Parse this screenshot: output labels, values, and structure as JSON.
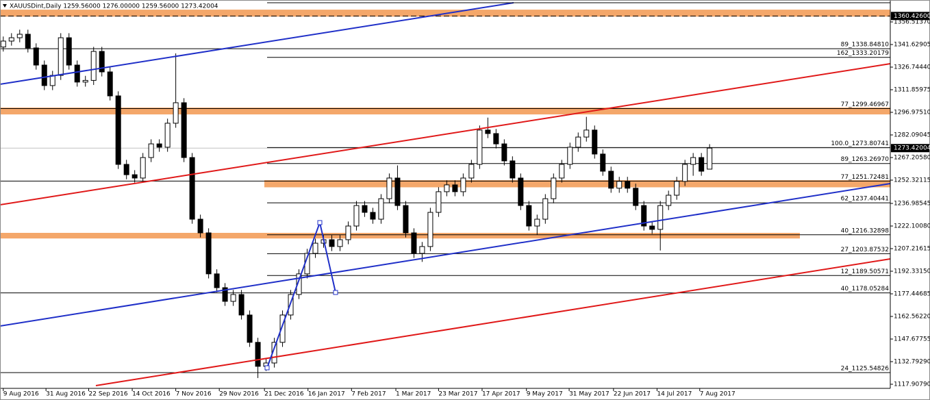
{
  "chart_data": {
    "type": "candlestick",
    "title": "XAUUSDint,Daily  1259.56000 1276.00000 1259.56000 1273.42004",
    "open": [
      1340.0,
      1343.9,
      1346.1,
      1348.4,
      1339.4,
      1328.1,
      1314.6,
      1321.3,
      1346.1,
      1328.1,
      1316.9,
      1318.0,
      1337.1,
      1323.6,
      1307.8,
      1262.7,
      1255.9,
      1253.7,
      1267.2,
      1276.2,
      1274.0,
      1289.8,
      1303.3,
      1267.2,
      1226.6,
      1217.6,
      1190.6,
      1181.5,
      1172.5,
      1177.0,
      1163.5,
      1145.5,
      1129.7,
      1131.9,
      1145.5,
      1163.5,
      1177.0,
      1190.6,
      1204.1,
      1210.8,
      1213.1,
      1208.6,
      1213.1,
      1222.1,
      1235.6,
      1231.1,
      1226.6,
      1240.1,
      1253.7,
      1235.6,
      1217.6,
      1204.1,
      1208.6,
      1231.1,
      1244.7,
      1249.2,
      1244.7,
      1253.7,
      1262.7,
      1285.3,
      1283.0,
      1276.2,
      1265.0,
      1253.7,
      1235.6,
      1222.1,
      1226.6,
      1240.1,
      1253.7,
      1262.7,
      1274.0,
      1280.7,
      1285.3,
      1269.5,
      1258.2,
      1247.0,
      1251.5,
      1247.0,
      1235.6,
      1222.1,
      1219.9,
      1235.6,
      1242.4,
      1251.5,
      1262.7,
      1267.2,
      1259.56
    ],
    "high": [
      1346.9,
      1349.1,
      1351.4,
      1351.4,
      1342.4,
      1331.1,
      1324.3,
      1349.1,
      1349.1,
      1331.1,
      1321.0,
      1340.1,
      1340.1,
      1326.6,
      1310.8,
      1265.7,
      1258.9,
      1270.2,
      1279.2,
      1279.2,
      1292.8,
      1335.8,
      1306.3,
      1270.2,
      1229.6,
      1220.6,
      1193.6,
      1184.5,
      1180.0,
      1180.0,
      1166.5,
      1148.5,
      1134.9,
      1148.5,
      1166.5,
      1180.0,
      1193.6,
      1207.1,
      1213.8,
      1216.1,
      1216.1,
      1216.1,
      1225.1,
      1238.6,
      1238.6,
      1234.1,
      1243.1,
      1256.7,
      1262.0,
      1238.6,
      1220.6,
      1211.6,
      1234.1,
      1247.7,
      1252.2,
      1252.2,
      1256.7,
      1265.7,
      1288.3,
      1293.5,
      1286.0,
      1279.2,
      1268.0,
      1256.7,
      1238.6,
      1229.6,
      1243.1,
      1256.7,
      1265.7,
      1277.0,
      1283.7,
      1294.0,
      1288.3,
      1272.5,
      1261.2,
      1254.5,
      1254.5,
      1250.0,
      1238.6,
      1225.1,
      1238.6,
      1245.4,
      1254.5,
      1265.7,
      1270.2,
      1270.2,
      1276.0
    ],
    "low": [
      1337.0,
      1340.9,
      1343.1,
      1336.4,
      1325.1,
      1311.6,
      1311.6,
      1318.3,
      1325.1,
      1313.9,
      1313.9,
      1315.0,
      1320.6,
      1304.8,
      1259.7,
      1252.9,
      1250.7,
      1250.7,
      1264.2,
      1271.0,
      1271.0,
      1286.8,
      1264.2,
      1223.6,
      1214.6,
      1187.6,
      1178.5,
      1169.5,
      1169.5,
      1160.5,
      1142.5,
      1122.0,
      1126.7,
      1128.9,
      1142.5,
      1160.5,
      1174.0,
      1187.6,
      1201.1,
      1207.8,
      1205.6,
      1205.6,
      1210.1,
      1219.1,
      1228.1,
      1223.6,
      1223.6,
      1237.1,
      1232.6,
      1214.6,
      1201.1,
      1198.5,
      1205.6,
      1228.1,
      1241.7,
      1241.7,
      1241.7,
      1250.7,
      1259.7,
      1280.0,
      1273.2,
      1262.0,
      1250.7,
      1232.6,
      1219.1,
      1216.5,
      1223.6,
      1237.1,
      1250.7,
      1259.7,
      1271.0,
      1277.7,
      1266.5,
      1255.2,
      1244.0,
      1244.0,
      1244.0,
      1232.6,
      1219.1,
      1216.9,
      1206.0,
      1232.6,
      1239.4,
      1248.5,
      1255.2,
      1255.2,
      1259.56
    ],
    "close": [
      1343.9,
      1346.1,
      1348.4,
      1339.4,
      1328.1,
      1314.6,
      1321.3,
      1346.1,
      1328.1,
      1316.9,
      1318.0,
      1337.1,
      1323.6,
      1307.8,
      1262.7,
      1255.9,
      1253.7,
      1267.2,
      1276.2,
      1274.0,
      1289.8,
      1303.3,
      1267.2,
      1226.6,
      1217.6,
      1190.6,
      1181.5,
      1172.5,
      1177.0,
      1163.5,
      1145.5,
      1129.7,
      1131.9,
      1145.5,
      1163.5,
      1177.0,
      1190.6,
      1204.1,
      1210.8,
      1213.1,
      1208.6,
      1213.1,
      1222.1,
      1235.6,
      1231.1,
      1226.6,
      1240.1,
      1253.7,
      1235.6,
      1217.6,
      1204.1,
      1208.6,
      1231.1,
      1244.7,
      1249.2,
      1244.7,
      1253.7,
      1262.7,
      1285.3,
      1283.0,
      1276.2,
      1265.0,
      1253.7,
      1235.6,
      1222.1,
      1226.6,
      1240.1,
      1253.7,
      1262.7,
      1274.0,
      1280.7,
      1285.3,
      1269.5,
      1258.2,
      1247.0,
      1251.5,
      1247.0,
      1235.6,
      1222.1,
      1219.9,
      1235.6,
      1242.4,
      1251.5,
      1262.7,
      1267.2,
      1258.2,
      1273.42004
    ],
    "xlim": [
      -0.4,
      108
    ],
    "xticks": [
      {
        "value": 0,
        "label": "9 Aug 2016"
      },
      {
        "value": 5.2,
        "label": "31 Aug 2016"
      },
      {
        "value": 10.4,
        "label": "22 Sep 2016"
      },
      {
        "value": 15.7,
        "label": "14 Oct 2016"
      },
      {
        "value": 21.0,
        "label": "7 Nov 2016"
      },
      {
        "value": 26.3,
        "label": "29 Nov 2016"
      },
      {
        "value": 31.8,
        "label": "21 Dec 2016"
      },
      {
        "value": 37.1,
        "label": "16 Jan 2017"
      },
      {
        "value": 42.4,
        "label": "7 Feb 2017"
      },
      {
        "value": 47.8,
        "label": "1 Mar 2017"
      },
      {
        "value": 53.0,
        "label": "23 Mar 2017"
      },
      {
        "value": 58.3,
        "label": "17 Apr 2017"
      },
      {
        "value": 63.7,
        "label": "9 May 2017"
      },
      {
        "value": 68.9,
        "label": "31 May 2017"
      },
      {
        "value": 74.3,
        "label": "22 Jun 2017"
      },
      {
        "value": 79.6,
        "label": "14 Jul 2017"
      },
      {
        "value": 84.8,
        "label": "7 Aug 2017"
      }
    ],
    "ylim": [
      1115.2,
      1370.95
    ],
    "yticks": [
      {
        "value": 1356.5137,
        "label": "1356.51370"
      },
      {
        "value": 1341.62905,
        "label": "1341.62905"
      },
      {
        "value": 1326.7444,
        "label": "1326.74440"
      },
      {
        "value": 1311.85975,
        "label": "1311.85975"
      },
      {
        "value": 1296.9751,
        "label": "1296.97510"
      },
      {
        "value": 1282.09045,
        "label": "1282.09045"
      },
      {
        "value": 1267.2058,
        "label": "1267.20580"
      },
      {
        "value": 1252.32115,
        "label": "1252.32115"
      },
      {
        "value": 1236.98545,
        "label": "1236.98545"
      },
      {
        "value": 1222.1008,
        "label": "1222.10080"
      },
      {
        "value": 1207.21615,
        "label": "1207.21615"
      },
      {
        "value": 1192.3315,
        "label": "1192.33150"
      },
      {
        "value": 1177.44685,
        "label": "1177.44685"
      },
      {
        "value": 1162.5622,
        "label": "1162.56220"
      },
      {
        "value": 1147.67755,
        "label": "1147.67755"
      },
      {
        "value": 1132.7929,
        "label": "1132.79290"
      },
      {
        "value": 1117.9079,
        "label": "1117.90790"
      }
    ],
    "levels": [
      {
        "value": 1338.8481,
        "label": "89_1338.84810"
      },
      {
        "value": 1333.20179,
        "label": "162_1333.20179"
      },
      {
        "value": 1299.46967,
        "label": "77_1299.46967"
      },
      {
        "value": 1273.80741,
        "label": "100.0_1273.80741"
      },
      {
        "value": 1263.2697,
        "label": "89_1263.26970"
      },
      {
        "value": 1251.72481,
        "label": "77_1251.72481"
      },
      {
        "value": 1237.40441,
        "label": "62_1237.40441"
      },
      {
        "value": 1216.32898,
        "label": "40_1216.32898"
      },
      {
        "value": 1203.87532,
        "label": "27_1203.87532"
      },
      {
        "value": 1189.50571,
        "label": "12_1189.50571"
      },
      {
        "value": 1178.05284,
        "label": "40_1178.05284"
      },
      {
        "value": 1125.54826,
        "label": "24_1125.54826"
      }
    ],
    "zones": [
      [
        1364.6,
        1360.0
      ],
      [
        1300.1,
        1295.6
      ],
      [
        1252.3,
        1247.6
      ],
      [
        1217.6,
        1213.9
      ]
    ],
    "markers": [
      {
        "value": 1360.426,
        "label": "1360.42600"
      },
      {
        "value": 1273.42004,
        "label": "1273.42004"
      }
    ]
  }
}
